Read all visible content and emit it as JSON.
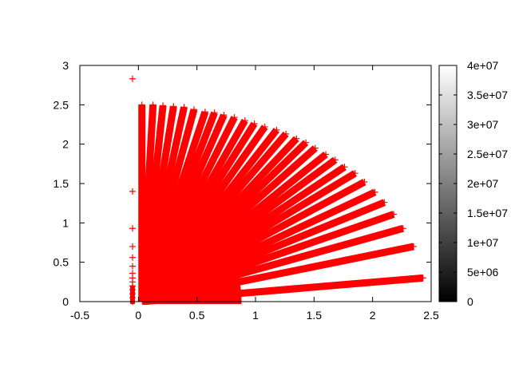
{
  "chart_data": {
    "type": "scatter",
    "title": "",
    "xlabel": "",
    "ylabel": "",
    "xlim": [
      -0.5,
      2.5
    ],
    "ylim": [
      0,
      3
    ],
    "x_ticks": [
      "-0.5",
      "0",
      "0.5",
      "1",
      "1.5",
      "2",
      "2.5"
    ],
    "y_ticks": [
      "0",
      "0.5",
      "1",
      "1.5",
      "2",
      "2.5",
      "3"
    ],
    "grid": false,
    "marker": "plus",
    "point_color": "#ff0000",
    "rays_description_origin": [
      0,
      0
    ],
    "ray_tips": [
      [
        0.03,
        2.5
      ],
      [
        0.125,
        2.5
      ],
      [
        0.21,
        2.49
      ],
      [
        0.3,
        2.48
      ],
      [
        0.39,
        2.47
      ],
      [
        0.475,
        2.44
      ],
      [
        0.57,
        2.41
      ],
      [
        0.65,
        2.4
      ],
      [
        0.73,
        2.37
      ],
      [
        0.82,
        2.34
      ],
      [
        0.91,
        2.3
      ],
      [
        0.99,
        2.26
      ],
      [
        1.08,
        2.22
      ],
      [
        1.18,
        2.18
      ],
      [
        1.26,
        2.13
      ],
      [
        1.35,
        2.07
      ],
      [
        1.43,
        2.02
      ],
      [
        1.51,
        1.95
      ],
      [
        1.6,
        1.87
      ],
      [
        1.68,
        1.8
      ],
      [
        1.76,
        1.71
      ],
      [
        1.85,
        1.63
      ],
      [
        1.93,
        1.52
      ],
      [
        2.02,
        1.39
      ],
      [
        2.1,
        1.26
      ],
      [
        2.18,
        1.11
      ],
      [
        2.26,
        0.93
      ],
      [
        2.35,
        0.7
      ],
      [
        2.43,
        0.3
      ]
    ],
    "dense_region": {
      "x_extent": 0.85,
      "y_extent": 1.4
    },
    "outlier_points": [
      [
        -0.05,
        2.83
      ],
      [
        -0.05,
        1.4
      ],
      [
        -0.05,
        0.93
      ],
      [
        -0.05,
        0.7
      ],
      [
        -0.05,
        0.56
      ],
      [
        -0.05,
        0.45
      ],
      [
        -0.05,
        0.36
      ],
      [
        -0.05,
        0.3
      ],
      [
        -0.05,
        0.25
      ],
      [
        -0.05,
        0.2
      ],
      [
        -0.05,
        0.15
      ],
      [
        -0.05,
        0.1
      ],
      [
        -0.05,
        0.05
      ],
      [
        -0.05,
        0.0
      ]
    ],
    "colorbar": {
      "range": [
        0,
        40000000
      ],
      "gradient": [
        "#000000",
        "#ffffff"
      ],
      "tick_labels": [
        "0",
        "5e+06",
        "1e+07",
        "1.5e+07",
        "2e+07",
        "2.5e+07",
        "3e+07",
        "3.5e+07",
        "4e+07"
      ]
    }
  }
}
